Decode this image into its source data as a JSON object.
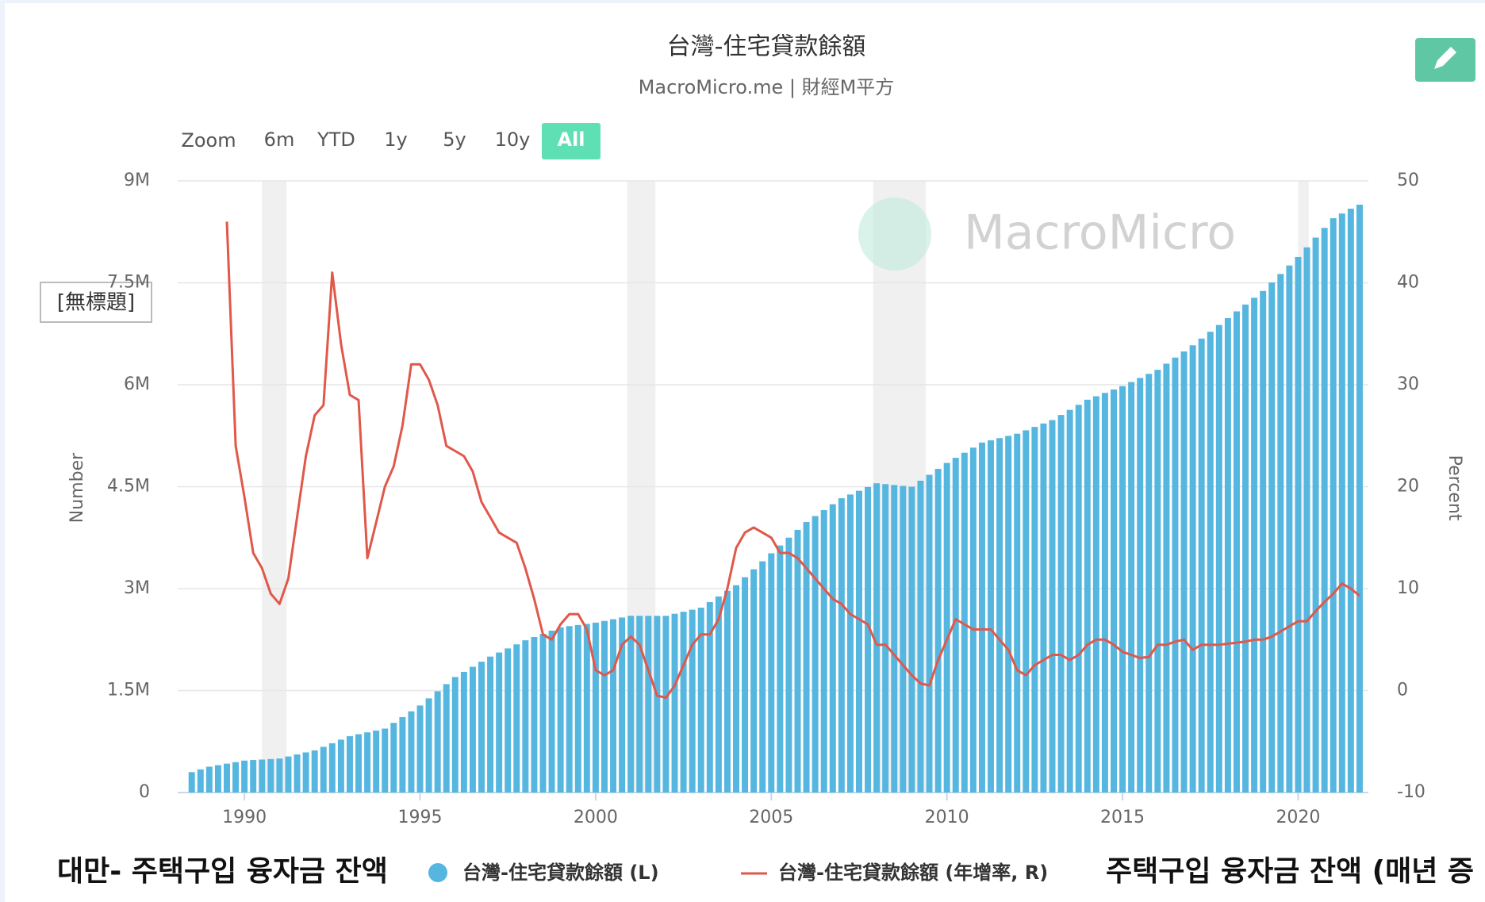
{
  "chart_data": {
    "type": "bar-line",
    "title": "台灣-住宅貸款餘額",
    "subtitle": "MacroMicro.me | 財經M平方",
    "watermark": "MacroMicro",
    "range_selector": {
      "label": "Zoom",
      "buttons": [
        "6m",
        "YTD",
        "1y",
        "5y",
        "10y",
        "All"
      ],
      "selected": 5
    },
    "tooltip": "[無標題]",
    "annotations": [
      "대만- 주택구입 융자금 잔액",
      "주택구입 융자금 잔액 (매년 증"
    ],
    "ylabel": "Number",
    "y2label": "Percent",
    "x": [
      1988.5,
      1988.75,
      1989,
      1989.25,
      1989.5,
      1989.75,
      1990,
      1990.25,
      1990.5,
      1990.75,
      1991,
      1991.25,
      1991.5,
      1991.75,
      1992,
      1992.25,
      1992.5,
      1992.75,
      1993,
      1993.25,
      1993.5,
      1993.75,
      1994,
      1994.25,
      1994.5,
      1994.75,
      1995,
      1995.25,
      1995.5,
      1995.75,
      1996,
      1996.25,
      1996.5,
      1996.75,
      1997,
      1997.25,
      1997.5,
      1997.75,
      1998,
      1998.25,
      1998.5,
      1998.75,
      1999,
      1999.25,
      1999.5,
      1999.75,
      2000,
      2000.25,
      2000.5,
      2000.75,
      2001,
      2001.25,
      2001.5,
      2001.75,
      2002,
      2002.25,
      2002.5,
      2002.75,
      2003,
      2003.25,
      2003.5,
      2003.75,
      2004,
      2004.25,
      2004.5,
      2004.75,
      2005,
      2005.25,
      2005.5,
      2005.75,
      2006,
      2006.25,
      2006.5,
      2006.75,
      2007,
      2007.25,
      2007.5,
      2007.75,
      2008,
      2008.25,
      2008.5,
      2008.75,
      2009,
      2009.25,
      2009.5,
      2009.75,
      2010,
      2010.25,
      2010.5,
      2010.75,
      2011,
      2011.25,
      2011.5,
      2011.75,
      2012,
      2012.25,
      2012.5,
      2012.75,
      2013,
      2013.25,
      2013.5,
      2013.75,
      2014,
      2014.25,
      2014.5,
      2014.75,
      2015,
      2015.25,
      2015.5,
      2015.75,
      2016,
      2016.25,
      2016.5,
      2016.75,
      2017,
      2017.25,
      2017.5,
      2017.75,
      2018,
      2018.25,
      2018.5,
      2018.75,
      2019,
      2019.25,
      2019.5,
      2019.75,
      2020,
      2020.25,
      2020.5,
      2020.75,
      2021,
      2021.25,
      2021.5,
      2021.75
    ],
    "series": [
      {
        "name": "台灣-住宅貸款餘額 (L)",
        "color": "#55b6e0",
        "axis": "y",
        "values": [
          300000,
          340000,
          380000,
          402000,
          425000,
          447000,
          470000,
          478000,
          485000,
          492000,
          500000,
          530000,
          560000,
          590000,
          620000,
          672000,
          725000,
          778000,
          830000,
          858000,
          885000,
          912000,
          940000,
          1025000,
          1110000,
          1195000,
          1280000,
          1385000,
          1490000,
          1595000,
          1700000,
          1775000,
          1850000,
          1925000,
          2000000,
          2060000,
          2120000,
          2180000,
          2240000,
          2288000,
          2335000,
          2382000,
          2430000,
          2448000,
          2465000,
          2482000,
          2500000,
          2525000,
          2550000,
          2575000,
          2600000,
          2600000,
          2600000,
          2600000,
          2600000,
          2630000,
          2660000,
          2690000,
          2720000,
          2802000,
          2885000,
          2968000,
          3050000,
          3168000,
          3285000,
          3402000,
          3520000,
          3635000,
          3750000,
          3865000,
          3980000,
          4068000,
          4155000,
          4242000,
          4330000,
          4385000,
          4440000,
          4495000,
          4550000,
          4538000,
          4525000,
          4512000,
          4500000,
          4588000,
          4675000,
          4762000,
          4850000,
          4925000,
          5000000,
          5075000,
          5150000,
          5182000,
          5215000,
          5248000,
          5280000,
          5330000,
          5380000,
          5430000,
          5480000,
          5555000,
          5630000,
          5705000,
          5780000,
          5830000,
          5880000,
          5930000,
          5980000,
          6040000,
          6100000,
          6160000,
          6220000,
          6310000,
          6400000,
          6490000,
          6580000,
          6680000,
          6780000,
          6880000,
          6980000,
          7080000,
          7180000,
          7280000,
          7380000,
          7505000,
          7630000,
          7755000,
          7880000,
          8022000,
          8165000,
          8308000,
          8450000,
          8520000,
          8590000,
          8650000
        ]
      },
      {
        "name": "台灣-住宅貸款餘額 (年增率, R)",
        "color": "#e0584a",
        "axis": "y2",
        "values": [
          null,
          null,
          null,
          null,
          46,
          24,
          19,
          13.5,
          12,
          9.5,
          8.5,
          11,
          17,
          23,
          27,
          28,
          41,
          34,
          29,
          28.5,
          13,
          16.5,
          20,
          22,
          26,
          32,
          32,
          30.5,
          28,
          24,
          23.5,
          23,
          21.5,
          18.5,
          17,
          15.5,
          15,
          14.5,
          12,
          9,
          5.5,
          5,
          6.5,
          7.5,
          7.5,
          6,
          2,
          1.5,
          2,
          4.5,
          5.3,
          4.5,
          2,
          -0.5,
          -0.7,
          0.5,
          2.5,
          4.5,
          5.5,
          5.5,
          7,
          10,
          14,
          15.5,
          16,
          15.5,
          15,
          13.5,
          13.5,
          13,
          12,
          11,
          10,
          9,
          8.5,
          7.5,
          7,
          6.5,
          4.5,
          4.5,
          3.5,
          2.5,
          1.5,
          0.7,
          0.5,
          3,
          5,
          7,
          6.5,
          6,
          6,
          6,
          5,
          4,
          2,
          1.5,
          2.5,
          3,
          3.5,
          3.5,
          3,
          3.5,
          4.5,
          5,
          5,
          4.5,
          3.8,
          3.5,
          3.2,
          3.3,
          4.5,
          4.5,
          4.8,
          5,
          4,
          4.5,
          4.5,
          4.5,
          4.6,
          4.7,
          4.8,
          5,
          5,
          5.3,
          5.8,
          6.3,
          6.8,
          6.8,
          7.8,
          8.7,
          9.5,
          10.5,
          10,
          9.3
        ]
      }
    ],
    "xlim": [
      1988.1,
      2022.0
    ],
    "xticks": [
      1990,
      1995,
      2000,
      2005,
      2010,
      2015,
      2020
    ],
    "ylim": [
      0,
      9000000
    ],
    "yticks": [
      0,
      {
        "value": 1500000,
        "label": "1.5M"
      },
      {
        "value": 3000000,
        "label": "3M"
      },
      {
        "value": 4500000,
        "label": "4.5M"
      },
      {
        "value": 6000000,
        "label": "6M"
      },
      {
        "value": 7500000,
        "label": "7.5M"
      },
      {
        "value": 9000000,
        "label": "9M"
      }
    ],
    "y2lim": [
      -10,
      50
    ],
    "y2ticks": [
      -10,
      0,
      10,
      20,
      30,
      40,
      50
    ],
    "shaded_periods": [
      [
        1990.5,
        1991.2
      ],
      [
        2000.9,
        2001.7
      ],
      [
        2007.9,
        2009.4
      ],
      [
        2020.0,
        2020.3
      ]
    ],
    "grid": true
  }
}
